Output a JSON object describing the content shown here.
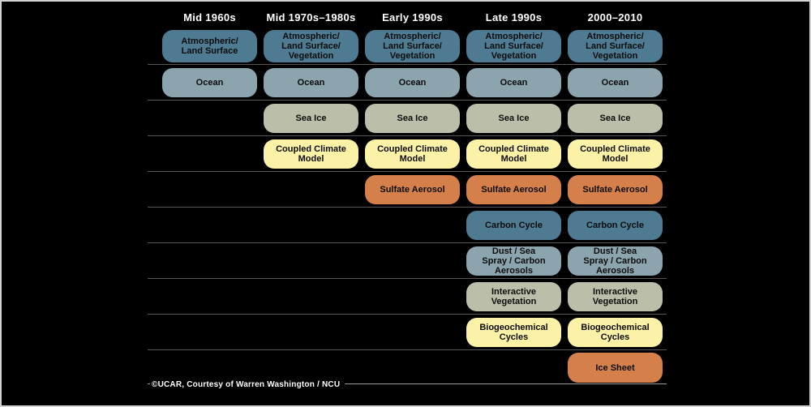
{
  "figure": {
    "background": "#000000",
    "frame_color": "#d2d2d2",
    "row_line_color": "#565656",
    "credit_line_color": "#9a9a9a",
    "credit": "©UCAR, Courtesy of Warren Washington / NCU"
  },
  "palette": {
    "teal": "#4E7A92",
    "blue_gray": "#8BA4AE",
    "olive": "#BBBFA9",
    "pale_yellow": "#FBF1A7",
    "orange": "#D5804A"
  },
  "columns": [
    {
      "id": "mid-1960s",
      "label": "Mid 1960s"
    },
    {
      "id": "mid-1970s-1980s",
      "label": "Mid 1970s–1980s"
    },
    {
      "id": "early-1990s",
      "label": "Early 1990s"
    },
    {
      "id": "late-1990s",
      "label": "Late 1990s"
    },
    {
      "id": "2000-2010",
      "label": "2000–2010"
    }
  ],
  "rows": [
    {
      "id": "atmospheric-land-surface",
      "palette": "teal",
      "cells": [
        "Atmospheric/\nLand Surface",
        "Atmospheric/\nLand Surface/\nVegetation",
        "Atmospheric/\nLand Surface/\nVegetation",
        "Atmospheric/\nLand Surface/\nVegetation",
        "Atmospheric/\nLand Surface/\nVegetation"
      ]
    },
    {
      "id": "ocean",
      "palette": "blue_gray",
      "cells": [
        "Ocean",
        "Ocean",
        "Ocean",
        "Ocean",
        "Ocean"
      ]
    },
    {
      "id": "sea-ice",
      "palette": "olive",
      "cells": [
        null,
        "Sea Ice",
        "Sea Ice",
        "Sea Ice",
        "Sea Ice"
      ]
    },
    {
      "id": "coupled-climate-model",
      "palette": "pale_yellow",
      "cells": [
        null,
        "Coupled Climate\nModel",
        "Coupled Climate\nModel",
        "Coupled Climate\nModel",
        "Coupled Climate\nModel"
      ]
    },
    {
      "id": "sulfate-aerosol",
      "palette": "orange",
      "cells": [
        null,
        null,
        "Sulfate Aerosol",
        "Sulfate Aerosol",
        "Sulfate Aerosol"
      ]
    },
    {
      "id": "carbon-cycle",
      "palette": "teal",
      "cells": [
        null,
        null,
        null,
        "Carbon Cycle",
        "Carbon Cycle"
      ]
    },
    {
      "id": "dust-sea-spray-carbon-aerosols",
      "palette": "blue_gray",
      "cells": [
        null,
        null,
        null,
        "Dust / Sea\nSpray / Carbon\nAerosols",
        "Dust / Sea\nSpray / Carbon\nAerosols"
      ]
    },
    {
      "id": "interactive-vegetation",
      "palette": "olive",
      "cells": [
        null,
        null,
        null,
        "Interactive\nVegetation",
        "Interactive\nVegetation"
      ]
    },
    {
      "id": "biogeochemical-cycles",
      "palette": "pale_yellow",
      "cells": [
        null,
        null,
        null,
        "Biogeochemical\nCycles",
        "Biogeochemical\nCycles"
      ]
    },
    {
      "id": "ice-sheet",
      "palette": "orange",
      "cells": [
        null,
        null,
        null,
        null,
        "Ice Sheet"
      ]
    }
  ]
}
